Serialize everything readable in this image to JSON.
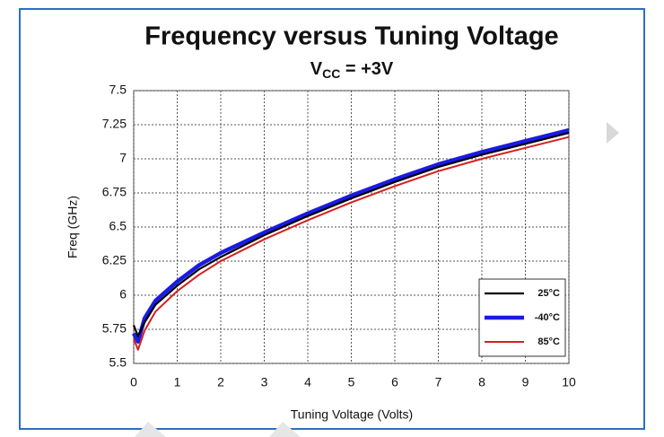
{
  "chart_data": {
    "type": "line",
    "title": "Frequency versus Tuning Voltage",
    "subtitle": [
      "V",
      "CC",
      " = +3V"
    ],
    "xlabel": "Tuning Voltage (Volts)",
    "ylabel": "Freq (GHz)",
    "x": [
      0,
      0.1,
      0.25,
      0.5,
      1,
      1.5,
      2,
      3,
      4,
      5,
      6,
      7,
      8,
      9,
      10
    ],
    "series": [
      {
        "name": "-40°C",
        "color": "#1a1ae6",
        "values": [
          5.72,
          5.66,
          5.83,
          5.96,
          6.1,
          6.22,
          6.31,
          6.46,
          6.6,
          6.73,
          6.85,
          6.96,
          7.05,
          7.13,
          7.21
        ]
      },
      {
        "name": "25°C",
        "color": "#000000",
        "values": [
          5.78,
          5.7,
          5.8,
          5.93,
          6.07,
          6.19,
          6.28,
          6.44,
          6.58,
          6.71,
          6.83,
          6.94,
          7.03,
          7.11,
          7.19
        ]
      },
      {
        "name": "85°C",
        "color": "#d42020",
        "values": [
          5.68,
          5.6,
          5.74,
          5.88,
          6.03,
          6.15,
          6.25,
          6.41,
          6.55,
          6.68,
          6.8,
          6.91,
          7.0,
          7.08,
          7.16
        ]
      }
    ],
    "legend_order": [
      1,
      0,
      2
    ],
    "xlim": [
      0,
      10
    ],
    "xticks": [
      0,
      1,
      2,
      3,
      4,
      5,
      6,
      7,
      8,
      9,
      10
    ],
    "ylim": [
      5.5,
      7.5
    ],
    "yticks": [
      5.5,
      5.75,
      6,
      6.25,
      6.5,
      6.75,
      7,
      7.25,
      7.5
    ],
    "grid": true,
    "legend": "lower right"
  }
}
